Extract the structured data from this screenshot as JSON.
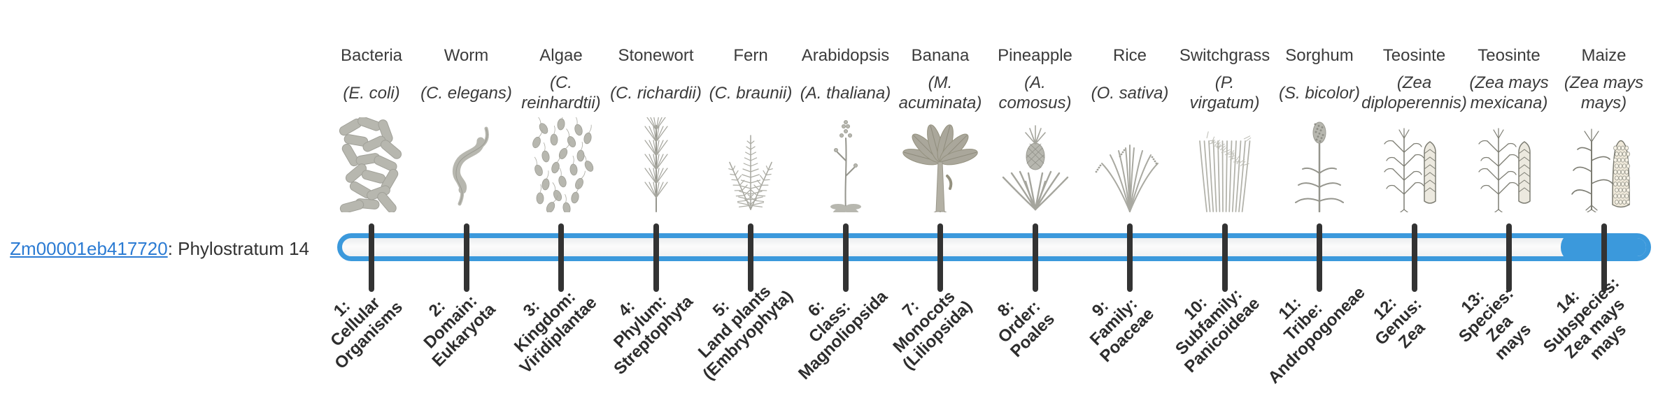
{
  "gene": {
    "id": "Zm00001eb417720",
    "suffix": ": Phylostratum 14",
    "link_color": "#2b7bd3"
  },
  "timeline": {
    "bar_border_color": "#3b99dc",
    "bar_fill_color": "#3b99dc",
    "tick_color": "#333333",
    "highlighted_stratum": 14,
    "strata_count": 14
  },
  "organisms": [
    {
      "name": "Bacteria",
      "sci": "(E. coli)",
      "icon": "bacteria-icon",
      "stage": "1:\nCellular\nOrganisms"
    },
    {
      "name": "Worm",
      "sci": "(C. elegans)",
      "icon": "worm-icon",
      "stage": "2:\nDomain:\nEukaryota"
    },
    {
      "name": "Algae",
      "sci": "(C.\nreinhardtii)",
      "icon": "algae-icon",
      "stage": "3:\nKingdom:\nViridiplantae"
    },
    {
      "name": "Stonewort",
      "sci": "(C. richardii)",
      "icon": "stonewort-icon",
      "stage": "4:\nPhylum:\nStreptophyta"
    },
    {
      "name": "Fern",
      "sci": "(C. braunii)",
      "icon": "fern-icon",
      "stage": "5:\nLand plants\n(Embryophyta)"
    },
    {
      "name": "Arabidopsis",
      "sci": "(A. thaliana)",
      "icon": "arabidopsis-icon",
      "stage": "6:\nClass:\nMagnoliopsida"
    },
    {
      "name": "Banana",
      "sci": "(M.\nacuminata)",
      "icon": "banana-icon",
      "stage": "7:\nMonocots\n(Liliopsida)"
    },
    {
      "name": "Pineapple",
      "sci": "(A.\ncomosus)",
      "icon": "pineapple-icon",
      "stage": "8:\nOrder:\nPoales"
    },
    {
      "name": "Rice",
      "sci": "(O. sativa)",
      "icon": "rice-icon",
      "stage": "9:\nFamily:\nPoaceae"
    },
    {
      "name": "Switchgrass",
      "sci": "(P.\nvirgatum)",
      "icon": "switchgrass-icon",
      "stage": "10:\nSubfamily:\nPanicoideae"
    },
    {
      "name": "Sorghum",
      "sci": "(S. bicolor)",
      "icon": "sorghum-icon",
      "stage": "11:\nTribe:\nAndropogoneae"
    },
    {
      "name": "Teosinte",
      "sci": "(Zea\ndiploperennis)",
      "icon": "teosinte-icon",
      "stage": "12:\nGenus:\nZea"
    },
    {
      "name": "Teosinte",
      "sci": "(Zea mays\nmexicana)",
      "icon": "teosinte-icon",
      "stage": "13:\nSpecies:\nZea\nmays"
    },
    {
      "name": "Maize",
      "sci": "(Zea mays\nmays)",
      "icon": "maize-icon",
      "stage": "14:\nSubspecies:\nZea mays\nmays"
    }
  ]
}
